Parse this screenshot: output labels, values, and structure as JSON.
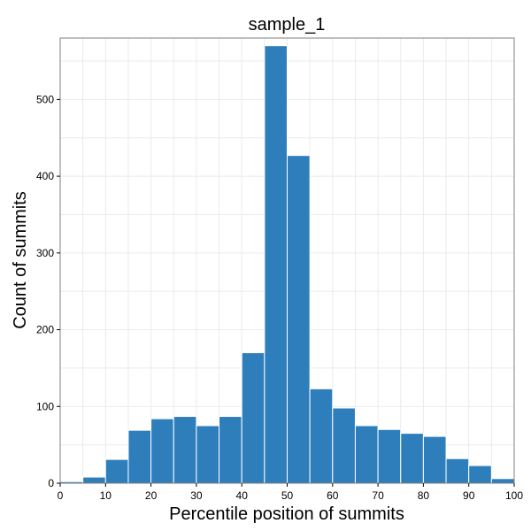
{
  "chart_data": {
    "type": "bar",
    "title": "sample_1",
    "xlabel": "Percentile position of summits",
    "ylabel": "Count of summits",
    "bin_width": 5,
    "bins": [
      {
        "start": 0,
        "end": 5,
        "value": 2
      },
      {
        "start": 5,
        "end": 10,
        "value": 8
      },
      {
        "start": 10,
        "end": 15,
        "value": 31
      },
      {
        "start": 15,
        "end": 20,
        "value": 69
      },
      {
        "start": 20,
        "end": 25,
        "value": 84
      },
      {
        "start": 25,
        "end": 30,
        "value": 87
      },
      {
        "start": 30,
        "end": 35,
        "value": 75
      },
      {
        "start": 35,
        "end": 40,
        "value": 87
      },
      {
        "start": 40,
        "end": 45,
        "value": 170
      },
      {
        "start": 45,
        "end": 50,
        "value": 570
      },
      {
        "start": 50,
        "end": 55,
        "value": 427
      },
      {
        "start": 55,
        "end": 60,
        "value": 123
      },
      {
        "start": 60,
        "end": 65,
        "value": 98
      },
      {
        "start": 65,
        "end": 70,
        "value": 75
      },
      {
        "start": 70,
        "end": 75,
        "value": 70
      },
      {
        "start": 75,
        "end": 80,
        "value": 65
      },
      {
        "start": 80,
        "end": 85,
        "value": 61
      },
      {
        "start": 85,
        "end": 90,
        "value": 32
      },
      {
        "start": 90,
        "end": 95,
        "value": 23
      },
      {
        "start": 95,
        "end": 100,
        "value": 6
      }
    ],
    "xlim": [
      0,
      100
    ],
    "ylim": [
      0,
      580
    ],
    "x_ticks": [
      0,
      10,
      20,
      30,
      40,
      50,
      60,
      70,
      80,
      90,
      100
    ],
    "y_ticks": [
      0,
      100,
      200,
      300,
      400,
      500
    ],
    "grid": true,
    "colors": {
      "bar_fill": "#2e7ebc",
      "bar_edge": "#ffffff",
      "grid": "#ebebeb",
      "panel_border": "#7f7f7f"
    }
  }
}
